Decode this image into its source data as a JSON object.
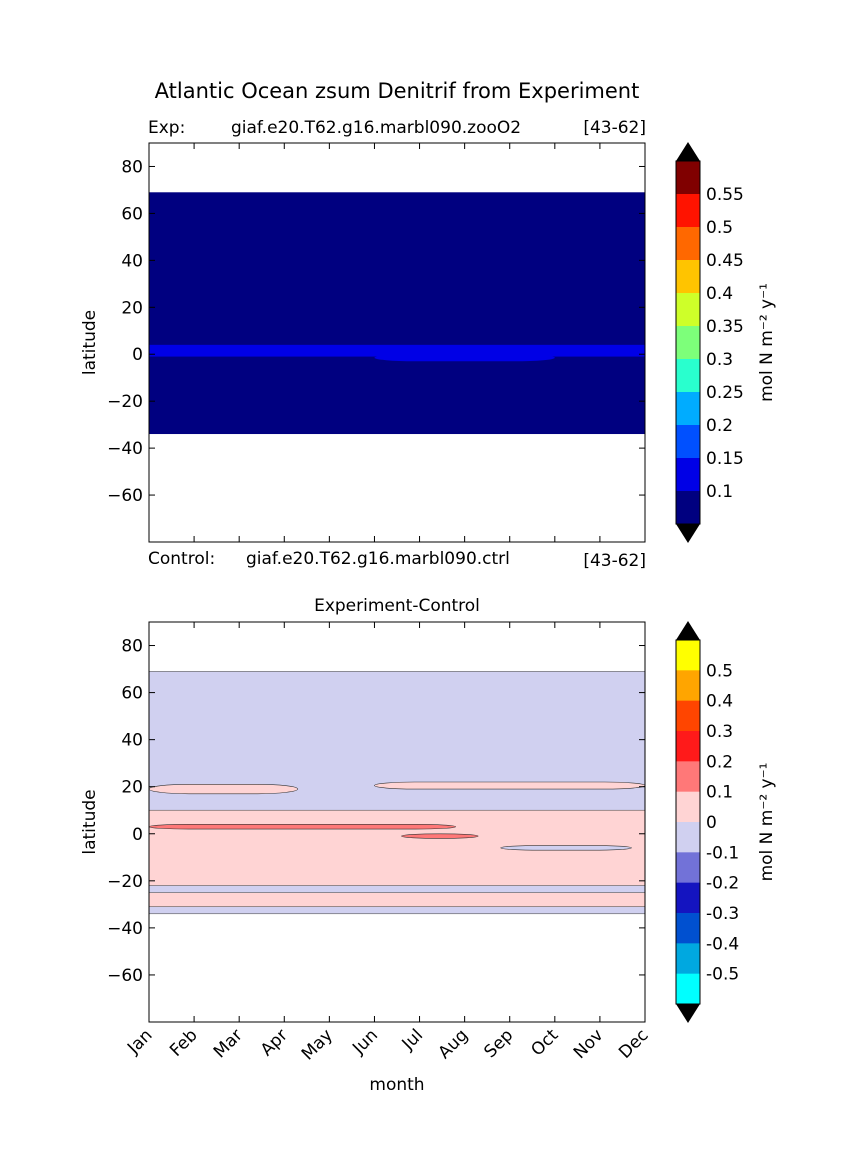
{
  "figure": {
    "title": "Atlantic Ocean zsum Denitrif from Experiment"
  },
  "top_panel": {
    "exp_label": "Exp:",
    "exp_case": "giaf.e20.T62.g16.marbl090.zooO2",
    "exp_years": "[43-62]",
    "control_label": "Control:",
    "control_case": "giaf.e20.T62.g16.marbl090.ctrl",
    "control_years": "[43-62]"
  },
  "bottom_panel": {
    "title": "Experiment-Control"
  },
  "chart_data": [
    {
      "type": "heatmap",
      "panel": "top",
      "ylabel": "latitude",
      "ylim": [
        -80,
        90
      ],
      "yticks": [
        80,
        60,
        40,
        20,
        0,
        -20,
        -40,
        -60
      ],
      "xlim": [
        0,
        11
      ],
      "data_lat_range": [
        -34,
        69
      ],
      "background_value": "<0.05",
      "features": [
        {
          "name": "equatorial band",
          "lat_range": [
            -1,
            4
          ],
          "value": 0.15
        },
        {
          "name": "southern equatorial band",
          "lat_range": [
            -3,
            0
          ],
          "value": 0.15,
          "months": [
            5,
            9
          ]
        }
      ],
      "colorbar": {
        "label": "mol N m⁻² y⁻¹",
        "tick_labels": [
          "0.1",
          "0.15",
          "0.2",
          "0.25",
          "0.3",
          "0.35",
          "0.4",
          "0.45",
          "0.5",
          "0.55"
        ],
        "colors": [
          "#000080",
          "#0000e6",
          "#0050ff",
          "#00acff",
          "#29ffce",
          "#7dff7a",
          "#ceff29",
          "#ffc400",
          "#ff6800",
          "#ff1300",
          "#800000"
        ],
        "extend_color": "#000000"
      }
    },
    {
      "type": "heatmap",
      "panel": "bottom",
      "title": "Experiment-Control",
      "xlabel": "month",
      "ylabel": "latitude",
      "categories": [
        "Jan",
        "Feb",
        "Mar",
        "Apr",
        "May",
        "Jun",
        "Jul",
        "Aug",
        "Sep",
        "Oct",
        "Nov",
        "Dec"
      ],
      "ylim": [
        -80,
        90
      ],
      "yticks": [
        80,
        60,
        40,
        20,
        0,
        -20,
        -40,
        -60
      ],
      "xlim": [
        0,
        11
      ],
      "data_lat_range": [
        -34,
        69
      ],
      "features": [
        {
          "lat_range": [
            -34,
            69
          ],
          "value": -0.05
        },
        {
          "lat_range": [
            -22,
            10
          ],
          "value": 0.05
        },
        {
          "lat_range": [
            -31,
            -25
          ],
          "value": 0.05
        },
        {
          "lat_range": [
            17,
            21
          ],
          "value": 0.05,
          "months": [
            0,
            3.3
          ]
        },
        {
          "lat_range": [
            19,
            22
          ],
          "value": 0.05,
          "months": [
            5,
            11
          ]
        },
        {
          "lat_range": [
            2,
            4
          ],
          "value": 0.15,
          "months": [
            0,
            6.8
          ]
        },
        {
          "lat_range": [
            -2,
            0
          ],
          "value": 0.15,
          "months": [
            5.6,
            7.3
          ]
        },
        {
          "lat_range": [
            -7,
            -5
          ],
          "value": -0.05,
          "months": [
            7.8,
            10.7
          ]
        }
      ],
      "colorbar": {
        "label": "mol N m⁻² y⁻¹",
        "tick_labels": [
          "0.5",
          "0.4",
          "0.3",
          "0.2",
          "0.1",
          "0",
          "-0.1",
          "-0.2",
          "-0.3",
          "-0.4",
          "-0.5"
        ],
        "colors": [
          "#ffff00",
          "#ffa500",
          "#ff4500",
          "#ff1a1a",
          "#ff7878",
          "#ffd4d4",
          "#d0d0f0",
          "#7272d8",
          "#1414c0",
          "#0050d0",
          "#00a8e0",
          "#00ffff"
        ],
        "extend_color": "#000000"
      }
    }
  ]
}
